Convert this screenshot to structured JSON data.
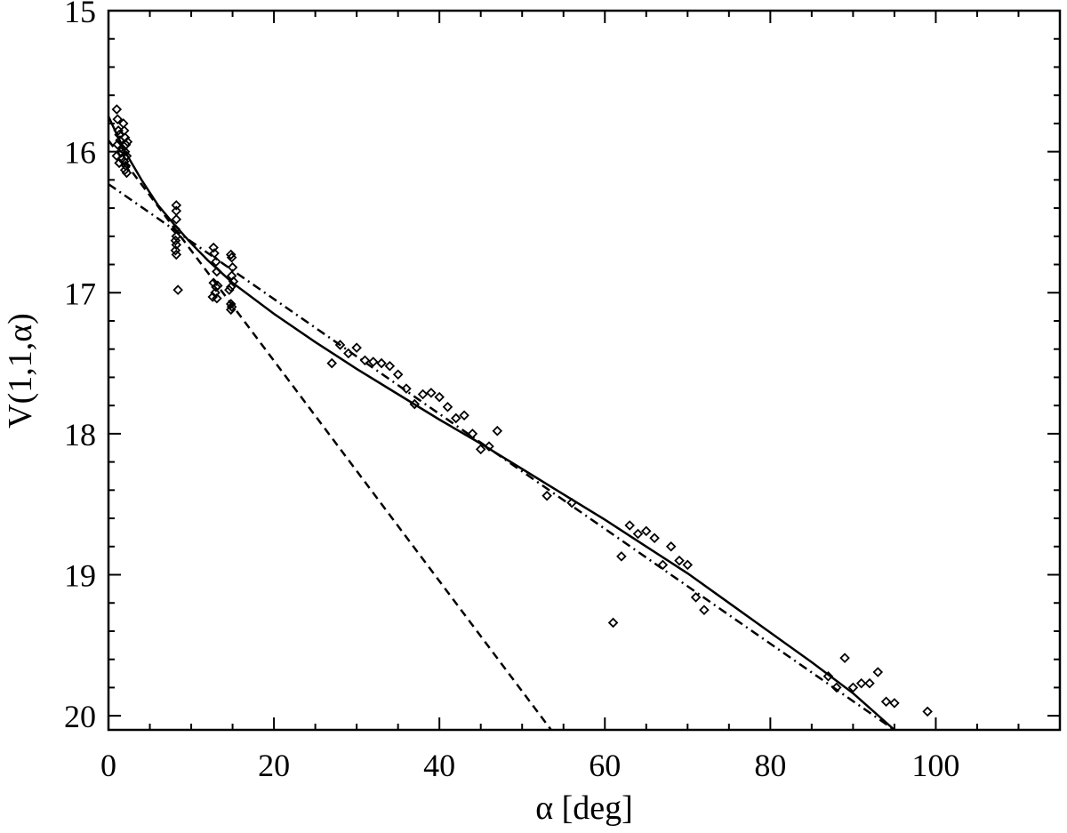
{
  "chart_data": {
    "type": "scatter",
    "xlabel": "α [deg]",
    "ylabel": "V(1,1,α)",
    "xlim": [
      0,
      115
    ],
    "ylim": [
      20.1,
      15
    ],
    "y_inverted": true,
    "grid": false,
    "x_major_ticks": [
      0,
      20,
      40,
      60,
      80,
      100
    ],
    "x_minor_step": 5,
    "y_major_ticks": [
      15,
      16,
      17,
      18,
      19,
      20
    ],
    "y_minor_step": 0.2,
    "x_tick_labels": [
      "0",
      "20",
      "40",
      "60",
      "80",
      "100"
    ],
    "y_tick_labels": [
      "15",
      "16",
      "17",
      "18",
      "19",
      "20"
    ],
    "series": [
      {
        "marker": "diamond-open",
        "points": [
          [
            1.0,
            15.7
          ],
          [
            1.1,
            15.77
          ],
          [
            1.2,
            15.85
          ],
          [
            1.3,
            15.88
          ],
          [
            1.4,
            15.92
          ],
          [
            1.1,
            15.95
          ],
          [
            1.5,
            16.0
          ],
          [
            1.0,
            16.03
          ],
          [
            1.6,
            16.05
          ],
          [
            1.3,
            16.08
          ],
          [
            1.8,
            15.8
          ],
          [
            1.9,
            15.85
          ],
          [
            2.0,
            15.9
          ],
          [
            2.1,
            15.95
          ],
          [
            2.0,
            16.0
          ],
          [
            2.2,
            16.03
          ],
          [
            1.9,
            16.07
          ],
          [
            2.1,
            16.1
          ],
          [
            2.0,
            16.13
          ],
          [
            2.2,
            16.15
          ],
          [
            1.7,
            15.98
          ],
          [
            2.3,
            15.93
          ],
          [
            8.2,
            16.38
          ],
          [
            8.2,
            16.42
          ],
          [
            8.2,
            16.48
          ],
          [
            8.1,
            16.55
          ],
          [
            8.2,
            16.6
          ],
          [
            8.1,
            16.63
          ],
          [
            8.2,
            16.66
          ],
          [
            8.1,
            16.7
          ],
          [
            8.2,
            16.73
          ],
          [
            8.4,
            16.98
          ],
          [
            12.7,
            16.68
          ],
          [
            12.8,
            16.72
          ],
          [
            13.0,
            16.78
          ],
          [
            13.1,
            16.85
          ],
          [
            12.7,
            16.93
          ],
          [
            13.0,
            16.96
          ],
          [
            13.2,
            16.95
          ],
          [
            12.9,
            17.0
          ],
          [
            12.6,
            17.03
          ],
          [
            13.1,
            17.04
          ],
          [
            14.8,
            16.73
          ],
          [
            14.9,
            16.75
          ],
          [
            15.0,
            16.82
          ],
          [
            14.9,
            16.88
          ],
          [
            15.1,
            16.92
          ],
          [
            14.8,
            16.96
          ],
          [
            14.6,
            16.98
          ],
          [
            14.8,
            17.08
          ],
          [
            14.9,
            17.1
          ],
          [
            14.8,
            17.12
          ],
          [
            27,
            17.5
          ],
          [
            28,
            17.37
          ],
          [
            29,
            17.43
          ],
          [
            30,
            17.39
          ],
          [
            31,
            17.48
          ],
          [
            32,
            17.49
          ],
          [
            33,
            17.5
          ],
          [
            34,
            17.52
          ],
          [
            35,
            17.58
          ],
          [
            36,
            17.68
          ],
          [
            37,
            17.79
          ],
          [
            38,
            17.72
          ],
          [
            39,
            17.71
          ],
          [
            40,
            17.74
          ],
          [
            41,
            17.81
          ],
          [
            42,
            17.89
          ],
          [
            43,
            17.87
          ],
          [
            44,
            18.0
          ],
          [
            45,
            18.11
          ],
          [
            46,
            18.09
          ],
          [
            47,
            17.98
          ],
          [
            53,
            18.44
          ],
          [
            56,
            18.49
          ],
          [
            61,
            19.34
          ],
          [
            62,
            18.87
          ],
          [
            63,
            18.65
          ],
          [
            64,
            18.71
          ],
          [
            65,
            18.69
          ],
          [
            66,
            18.74
          ],
          [
            67,
            18.93
          ],
          [
            68,
            18.8
          ],
          [
            69,
            18.9
          ],
          [
            70,
            18.93
          ],
          [
            71,
            19.16
          ],
          [
            72,
            19.25
          ],
          [
            87,
            19.72
          ],
          [
            88,
            19.8
          ],
          [
            89,
            19.59
          ],
          [
            90,
            19.8
          ],
          [
            91,
            19.77
          ],
          [
            92,
            19.77
          ],
          [
            93,
            19.69
          ],
          [
            94,
            19.9
          ],
          [
            95,
            19.91
          ],
          [
            99,
            19.97
          ]
        ]
      }
    ],
    "curves": [
      {
        "style": "solid",
        "x": [
          0,
          2,
          4,
          6,
          8,
          10,
          12,
          15,
          20,
          25,
          30,
          35,
          40,
          45,
          50,
          55,
          60,
          65,
          70,
          75,
          80,
          85,
          90,
          95
        ],
        "y": [
          15.75,
          16.0,
          16.2,
          16.38,
          16.52,
          16.65,
          16.77,
          16.93,
          17.15,
          17.35,
          17.54,
          17.72,
          17.9,
          18.07,
          18.25,
          18.43,
          18.61,
          18.8,
          18.99,
          19.2,
          19.41,
          19.62,
          19.84,
          20.1
        ]
      },
      {
        "style": "dashed",
        "x": [
          0,
          53.5
        ],
        "y": [
          15.92,
          20.1
        ]
      },
      {
        "style": "dashdot",
        "x": [
          0,
          95
        ],
        "y": [
          16.23,
          20.1
        ]
      }
    ]
  }
}
